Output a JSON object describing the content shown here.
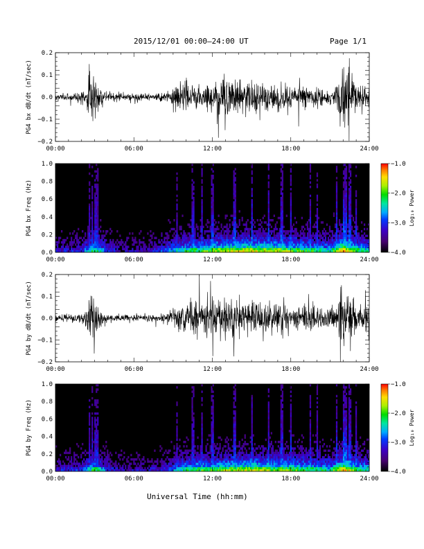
{
  "header": {
    "title": "2015/12/01  00:00–24:00 UT",
    "page_label": "Page 1/1"
  },
  "footer": {
    "xlabel": "Universal Time (hh:mm)"
  },
  "colors": {
    "background": "#ffffff",
    "trace": "#000000",
    "spectrogram_background": "#000000"
  },
  "chart_data": [
    {
      "type": "line",
      "panel": "PG4 bx dB/dt",
      "ylabel": "PG4 bx dB/dt (nT/sec)",
      "xlim": [
        0,
        24
      ],
      "ylim": [
        -0.2,
        0.2
      ],
      "x_ticks": [
        "00:00",
        "06:00",
        "12:00",
        "18:00",
        "24:00"
      ],
      "y_ticks": [
        "0.2",
        "0.1",
        "0.0",
        "−0.1",
        "−0.2"
      ],
      "y_tick_values": [
        0.2,
        0.1,
        0.0,
        -0.1,
        -0.2
      ],
      "x_tick_values": [
        0,
        6,
        12,
        18,
        24
      ],
      "envelope": {
        "hours": [
          0.0,
          1.0,
          2.0,
          2.4,
          2.6,
          2.8,
          3.0,
          3.3,
          4.0,
          5.0,
          6.0,
          7.0,
          8.0,
          8.6,
          9.0,
          10.0,
          11.0,
          12.0,
          13.0,
          13.5,
          14.0,
          15.0,
          16.0,
          17.0,
          18.0,
          19.0,
          20.0,
          21.0,
          21.6,
          22.0,
          22.3,
          23.0,
          24.0
        ],
        "amplitude": [
          0.02,
          0.02,
          0.03,
          0.05,
          0.22,
          0.1,
          0.15,
          0.05,
          0.025,
          0.02,
          0.02,
          0.02,
          0.025,
          0.04,
          0.08,
          0.09,
          0.07,
          0.09,
          0.14,
          0.12,
          0.1,
          0.1,
          0.09,
          0.08,
          0.07,
          0.07,
          0.06,
          0.05,
          0.08,
          0.22,
          0.2,
          0.08,
          0.06
        ]
      }
    },
    {
      "type": "heatmap",
      "panel": "PG4 bx spectrogram",
      "ylabel": "PG4 bx Freq (Hz)",
      "xlim": [
        0,
        24
      ],
      "ylim": [
        0.0,
        1.0
      ],
      "x_ticks": [
        "00:00",
        "06:00",
        "12:00",
        "18:00",
        "24:00"
      ],
      "y_ticks": [
        "1.0",
        "0.8",
        "0.6",
        "0.4",
        "0.2",
        "0.0"
      ],
      "y_tick_values": [
        1.0,
        0.8,
        0.6,
        0.4,
        0.2,
        0.0
      ],
      "x_tick_values": [
        0,
        6,
        12,
        18,
        24
      ],
      "colorbar": {
        "label": "Log₁₀ Power",
        "range": [
          -4.0,
          -1.0
        ],
        "ticks": [
          "−1.0",
          "−2.0",
          "−3.0",
          "−4.0"
        ],
        "tick_values": [
          -1.0,
          -2.0,
          -3.0,
          -4.0
        ]
      },
      "activity_profile": {
        "hours": [
          0,
          1,
          2,
          3,
          4,
          5,
          6,
          7,
          8,
          9,
          10,
          11,
          12,
          13,
          14,
          15,
          16,
          17,
          18,
          19,
          20,
          21,
          22,
          23,
          24
        ],
        "level": [
          0.25,
          0.25,
          0.3,
          0.6,
          0.3,
          0.2,
          0.2,
          0.2,
          0.3,
          0.45,
          0.55,
          0.6,
          0.65,
          0.7,
          0.7,
          0.75,
          0.7,
          0.7,
          0.65,
          0.6,
          0.55,
          0.5,
          0.85,
          0.6,
          0.5
        ]
      },
      "spikes_hours": [
        2.6,
        2.8,
        3.0,
        3.2,
        9.3,
        10.5,
        11.2,
        12.0,
        13.7,
        15.0,
        16.3,
        17.3,
        18.0,
        19.5,
        20.0,
        21.5,
        22.0,
        22.2,
        22.5,
        23.0
      ]
    },
    {
      "type": "line",
      "panel": "PG4 by dB/dt",
      "ylabel": "PG4 by dB/dt (nT/sec)",
      "xlim": [
        0,
        24
      ],
      "ylim": [
        -0.2,
        0.2
      ],
      "x_ticks": [
        "00:00",
        "06:00",
        "12:00",
        "18:00",
        "24:00"
      ],
      "y_ticks": [
        "0.2",
        "0.1",
        "0.0",
        "−0.1",
        "−0.2"
      ],
      "y_tick_values": [
        0.2,
        0.1,
        0.0,
        -0.1,
        -0.2
      ],
      "x_tick_values": [
        0,
        6,
        12,
        18,
        24
      ],
      "envelope": {
        "hours": [
          0.0,
          1.0,
          2.0,
          2.4,
          2.6,
          2.8,
          3.0,
          3.3,
          4.0,
          5.0,
          6.0,
          7.0,
          8.0,
          8.6,
          9.0,
          10.0,
          11.0,
          12.0,
          13.0,
          14.0,
          15.0,
          16.0,
          17.0,
          18.0,
          19.0,
          20.0,
          21.0,
          21.6,
          22.0,
          22.3,
          23.0,
          24.0
        ],
        "amplitude": [
          0.02,
          0.02,
          0.03,
          0.06,
          0.22,
          0.12,
          0.2,
          0.05,
          0.02,
          0.02,
          0.02,
          0.02,
          0.02,
          0.03,
          0.07,
          0.1,
          0.11,
          0.11,
          0.12,
          0.1,
          0.1,
          0.09,
          0.09,
          0.07,
          0.07,
          0.06,
          0.06,
          0.1,
          0.22,
          0.2,
          0.08,
          0.06
        ]
      }
    },
    {
      "type": "heatmap",
      "panel": "PG4 by spectrogram",
      "ylabel": "PG4 by Freq (Hz)",
      "xlim": [
        0,
        24
      ],
      "ylim": [
        0.0,
        1.0
      ],
      "x_ticks": [
        "00:00",
        "06:00",
        "12:00",
        "18:00",
        "24:00"
      ],
      "y_ticks": [
        "1.0",
        "0.8",
        "0.6",
        "0.4",
        "0.2",
        "0.0"
      ],
      "y_tick_values": [
        1.0,
        0.8,
        0.6,
        0.4,
        0.2,
        0.0
      ],
      "x_tick_values": [
        0,
        6,
        12,
        18,
        24
      ],
      "colorbar": {
        "label": "Log₁₀ Power",
        "range": [
          -4.0,
          -1.0
        ],
        "ticks": [
          "−1.0",
          "−2.0",
          "−3.0",
          "−4.0"
        ],
        "tick_values": [
          -1.0,
          -2.0,
          -3.0,
          -4.0
        ]
      },
      "activity_profile": {
        "hours": [
          0,
          1,
          2,
          3,
          4,
          5,
          6,
          7,
          8,
          9,
          10,
          11,
          12,
          13,
          14,
          15,
          16,
          17,
          18,
          19,
          20,
          21,
          22,
          23,
          24
        ],
        "level": [
          0.25,
          0.25,
          0.3,
          0.6,
          0.3,
          0.2,
          0.2,
          0.2,
          0.25,
          0.4,
          0.55,
          0.6,
          0.6,
          0.65,
          0.7,
          0.7,
          0.7,
          0.65,
          0.65,
          0.6,
          0.55,
          0.5,
          0.85,
          0.6,
          0.5
        ]
      },
      "spikes_hours": [
        2.6,
        2.8,
        3.0,
        3.2,
        9.3,
        10.5,
        11.2,
        12.0,
        13.7,
        15.0,
        16.3,
        17.3,
        18.0,
        19.5,
        20.0,
        21.5,
        22.0,
        22.2,
        22.5,
        23.0
      ]
    }
  ]
}
